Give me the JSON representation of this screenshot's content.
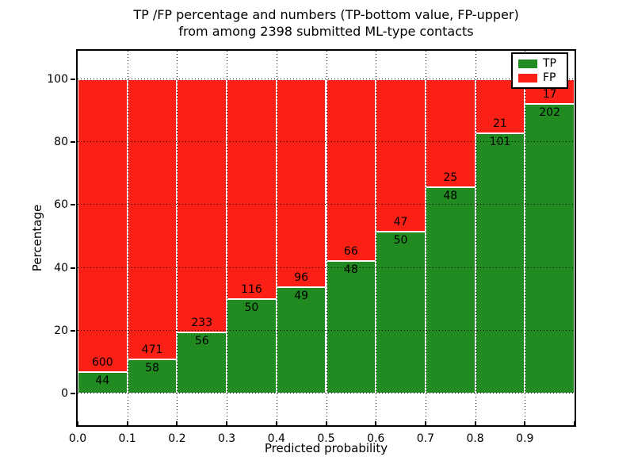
{
  "chart_data": {
    "type": "bar",
    "stacked": true,
    "normalization": "each bar scaled to 100%",
    "title_lines": [
      "TP /FP percentage and numbers (TP-bottom value, FP-upper)",
      "from among 2398 submitted ML-type contacts"
    ],
    "title": "TP /FP percentage and numbers (TP-bottom value, FP-upper) from among 2398 submitted ML-type contacts",
    "xlabel": "Predicted probability",
    "ylabel": "Percentage",
    "total_contacts": 2398,
    "bar_width": 0.1,
    "xtick_labels": [
      "0.0",
      "0.1",
      "0.2",
      "0.3",
      "0.4",
      "0.5",
      "0.6",
      "0.7",
      "0.8",
      "0.9"
    ],
    "ytick_values": [
      0,
      20,
      40,
      60,
      80,
      100
    ],
    "ylim": [
      -10,
      110
    ],
    "grid": "dotted",
    "legend_position": "upper right",
    "series": [
      {
        "name": "TP",
        "color": "#218a21",
        "counts": [
          44,
          58,
          56,
          50,
          49,
          48,
          50,
          48,
          101,
          202
        ]
      },
      {
        "name": "FP",
        "color": "#fb2015",
        "counts": [
          600,
          471,
          233,
          116,
          96,
          66,
          47,
          25,
          21,
          17
        ]
      }
    ]
  }
}
